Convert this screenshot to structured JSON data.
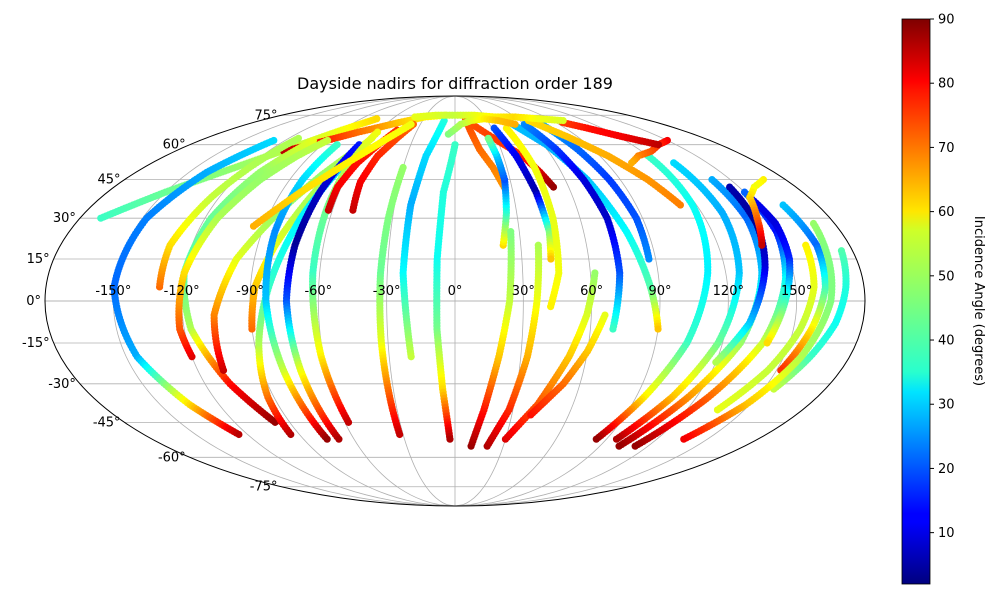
{
  "chart_data": {
    "type": "scatter",
    "projection": "mollweide",
    "title": "Dayside nadirs for diffraction order 189",
    "grid": true,
    "longitude_ticks": [
      "-150°",
      "-120°",
      "-90°",
      "-60°",
      "-30°",
      "0°",
      "30°",
      "60°",
      "90°",
      "120°",
      "150°"
    ],
    "latitude_ticks": [
      "-75°",
      "-60°",
      "-45°",
      "-30°",
      "-15°",
      "0°",
      "15°",
      "30°",
      "45°",
      "60°",
      "75°"
    ],
    "colorbar": {
      "label": "Incidence Angle (degrees)",
      "colormap": "jet",
      "range": [
        2,
        90
      ],
      "ticks": [
        "10",
        "20",
        "30",
        "40",
        "50",
        "60",
        "70",
        "80",
        "90"
      ]
    },
    "tracks": [
      {
        "lon": [
          -170,
          -150,
          -125,
          -105,
          -90,
          -75
        ],
        "lat": [
          30,
          40,
          51,
          60,
          67,
          73
        ],
        "incidence": [
          40,
          44,
          48,
          52,
          56,
          60
        ]
      },
      {
        "lon": [
          -110,
          -75,
          -50,
          -30,
          -10
        ],
        "lat": [
          57,
          66,
          71,
          74,
          75
        ],
        "incidence": [
          85,
          70,
          62,
          58,
          55
        ]
      },
      {
        "lon": [
          -128,
          -140,
          -148,
          -150,
          -145,
          -135,
          -125
        ],
        "lat": [
          62,
          48,
          30,
          5,
          -20,
          -38,
          -50
        ],
        "incidence": [
          32,
          28,
          24,
          22,
          28,
          60,
          85
        ]
      },
      {
        "lon": [
          -130,
          -130,
          -124,
          -118,
          -113
        ],
        "lat": [
          5,
          20,
          38,
          52,
          63
        ],
        "incidence": [
          70,
          60,
          52,
          50,
          50
        ]
      },
      {
        "lon": [
          -100,
          -110,
          -117,
          -120,
          -117,
          -108,
          -98
        ],
        "lat": [
          62,
          48,
          30,
          10,
          -10,
          -30,
          -45
        ],
        "incidence": [
          55,
          48,
          44,
          42,
          50,
          78,
          88
        ]
      },
      {
        "lon": [
          -120,
          -122,
          -120,
          -114,
          -106,
          -98,
          -90
        ],
        "lat": [
          -20,
          -10,
          10,
          30,
          45,
          55,
          62
        ],
        "incidence": [
          82,
          72,
          60,
          50,
          48,
          50,
          52
        ]
      },
      {
        "lon": [
          -108,
          -106,
          -98,
          -86,
          -74,
          -62
        ],
        "lat": [
          -25,
          -5,
          15,
          32,
          47,
          60
        ],
        "incidence": [
          84,
          68,
          55,
          48,
          48,
          52
        ]
      },
      {
        "lon": [
          -90,
          -88,
          -82,
          -75,
          -68,
          -60
        ],
        "lat": [
          -10,
          5,
          20,
          35,
          50,
          63
        ],
        "incidence": [
          70,
          62,
          55,
          50,
          50,
          54
        ]
      },
      {
        "lon": [
          -95,
          -93,
          -88,
          -82,
          -74,
          -64
        ],
        "lat": [
          -50,
          -35,
          -15,
          5,
          30,
          55
        ],
        "incidence": [
          86,
          70,
          50,
          40,
          34,
          32
        ]
      },
      {
        "lon": [
          -80,
          -83,
          -84,
          -83,
          -80,
          -76
        ],
        "lat": [
          60,
          45,
          25,
          0,
          -25,
          -52
        ],
        "incidence": [
          40,
          32,
          25,
          30,
          52,
          88
        ]
      },
      {
        "lon": [
          -65,
          -70,
          -73,
          -74,
          -72,
          -69
        ],
        "lat": [
          60,
          40,
          20,
          0,
          -25,
          -52
        ],
        "incidence": [
          15,
          8,
          4,
          20,
          55,
          86
        ]
      },
      {
        "lon": [
          -60,
          -62,
          -63,
          -63,
          -61,
          -58
        ],
        "lat": [
          66,
          52,
          35,
          10,
          -20,
          -45
        ],
        "incidence": [
          56,
          52,
          45,
          40,
          58,
          84
        ]
      },
      {
        "lon": [
          -62,
          -62,
          -58,
          -52,
          -46
        ],
        "lat": [
          33,
          42,
          52,
          60,
          67
        ],
        "incidence": [
          84,
          80,
          78,
          76,
          75
        ]
      },
      {
        "lon": [
          -50,
          -51,
          -48,
          -42,
          -36
        ],
        "lat": [
          33,
          44,
          55,
          63,
          70
        ],
        "incidence": [
          84,
          80,
          76,
          73,
          70
        ]
      },
      {
        "lon": [
          -95,
          -80,
          -64,
          -50,
          -38
        ],
        "lat": [
          27,
          40,
          52,
          62,
          70
        ],
        "incidence": [
          64,
          60,
          58,
          57,
          56
        ]
      },
      {
        "lon": [
          -30,
          -32,
          -33,
          -33,
          -32
        ],
        "lat": [
          50,
          30,
          10,
          -15,
          -50
        ],
        "incidence": [
          48,
          46,
          44,
          55,
          84
        ]
      },
      {
        "lon": [
          -10,
          -18,
          -22,
          -23,
          -20
        ],
        "lat": [
          72,
          55,
          35,
          10,
          -20
        ],
        "incidence": [
          38,
          32,
          28,
          35,
          52
        ]
      },
      {
        "lon": [
          0,
          -6,
          -8,
          -8,
          -6,
          -3
        ],
        "lat": [
          60,
          40,
          15,
          -10,
          -32,
          -52
        ],
        "incidence": [
          40,
          38,
          36,
          45,
          60,
          86
        ]
      },
      {
        "lon": [
          10,
          12,
          16,
          22,
          26
        ],
        "lat": [
          73,
          67,
          58,
          50,
          42
        ],
        "incidence": [
          72,
          72,
          70,
          68,
          66
        ]
      },
      {
        "lon": [
          15,
          30,
          42,
          48,
          52
        ],
        "lat": [
          70,
          62,
          55,
          48,
          42
        ],
        "incidence": [
          72,
          74,
          76,
          82,
          88
        ]
      },
      {
        "lon": [
          22,
          25,
          27,
          26,
          24
        ],
        "lat": [
          20,
          32,
          45,
          55,
          63
        ],
        "incidence": [
          60,
          40,
          20,
          30,
          45
        ]
      },
      {
        "lon": [
          32,
          38,
          42,
          44,
          43
        ],
        "lat": [
          68,
          55,
          40,
          25,
          15
        ],
        "incidence": [
          20,
          12,
          6,
          45,
          62
        ]
      },
      {
        "lon": [
          42,
          46,
          47,
          46,
          42
        ],
        "lat": [
          68,
          50,
          30,
          10,
          -2
        ],
        "incidence": [
          58,
          56,
          55,
          56,
          58
        ]
      },
      {
        "lon": [
          10,
          15,
          20,
          24,
          26
        ],
        "lat": [
          -55,
          -40,
          -20,
          0,
          25
        ],
        "incidence": [
          88,
          78,
          62,
          52,
          46
        ]
      },
      {
        "lon": [
          20,
          28,
          33,
          36,
          38
        ],
        "lat": [
          -55,
          -40,
          -20,
          0,
          20
        ],
        "incidence": [
          86,
          76,
          64,
          56,
          50
        ]
      },
      {
        "lon": [
          30,
          42,
          52,
          58,
          62
        ],
        "lat": [
          -52,
          -38,
          -20,
          -5,
          10
        ],
        "incidence": [
          82,
          72,
          62,
          54,
          48
        ]
      },
      {
        "lon": [
          40,
          52,
          60,
          66
        ],
        "lat": [
          -42,
          -30,
          -18,
          -5
        ],
        "incidence": [
          78,
          70,
          62,
          55
        ]
      },
      {
        "lon": [
          50,
          62,
          72,
          80,
          86,
          90
        ],
        "lat": [
          70,
          60,
          45,
          25,
          5,
          -10
        ],
        "incidence": [
          30,
          28,
          30,
          35,
          42,
          62
        ]
      },
      {
        "lon": [
          60,
          66,
          70,
          73,
          73,
          70
        ],
        "lat": [
          70,
          58,
          45,
          30,
          10,
          -10
        ],
        "incidence": [
          25,
          18,
          10,
          8,
          20,
          40
        ]
      },
      {
        "lon": [
          75,
          80,
          84,
          87,
          87
        ],
        "lat": [
          70,
          58,
          45,
          30,
          15
        ],
        "incidence": [
          28,
          22,
          18,
          20,
          25
        ]
      },
      {
        "lon": [
          68,
          82,
          95,
          105,
          112
        ],
        "lat": [
          72,
          64,
          55,
          45,
          35
        ],
        "incidence": [
          60,
          62,
          64,
          66,
          68
        ]
      },
      {
        "lon": [
          120,
          118,
          112,
          104,
          94,
          84
        ],
        "lat": [
          55,
          35,
          10,
          -15,
          -35,
          -52
        ],
        "incidence": [
          40,
          36,
          34,
          40,
          58,
          88
        ]
      },
      {
        "lon": [
          130,
          130,
          126,
          118,
          108,
          96
        ],
        "lat": [
          52,
          32,
          10,
          -15,
          -35,
          -52
        ],
        "incidence": [
          32,
          28,
          30,
          44,
          62,
          86
        ]
      },
      {
        "lon": [
          140,
          140,
          136,
          128,
          116,
          102
        ],
        "lat": [
          45,
          30,
          10,
          -15,
          -35,
          -55
        ],
        "incidence": [
          28,
          22,
          30,
          48,
          66,
          88
        ]
      },
      {
        "lon": [
          150,
          150,
          146,
          138,
          126,
          112
        ],
        "lat": [
          40,
          25,
          8,
          -15,
          -35,
          -55
        ],
        "incidence": [
          22,
          14,
          35,
          52,
          70,
          88
        ]
      },
      {
        "lon": [
          145,
          143,
          138,
          130,
          120
        ],
        "lat": [
          42,
          28,
          12,
          -8,
          -22
        ],
        "incidence": [
          6,
          4,
          10,
          30,
          50
        ]
      },
      {
        "lon": [
          150,
          152,
          150,
          145,
          140
        ],
        "lat": [
          38,
          28,
          15,
          0,
          -15
        ],
        "incidence": [
          12,
          10,
          16,
          40,
          60
        ]
      },
      {
        "lon": [
          163,
          165,
          163,
          158,
          152
        ],
        "lat": [
          35,
          20,
          5,
          -10,
          -25
        ],
        "incidence": [
          30,
          22,
          40,
          58,
          75
        ]
      },
      {
        "lon": [
          175,
          172,
          168,
          162,
          155
        ],
        "lat": [
          18,
          5,
          -8,
          -20,
          -32
        ],
        "incidence": [
          42,
          38,
          36,
          40,
          52
        ]
      },
      {
        "lon": [
          170,
          168,
          165,
          158,
          148,
          136
        ],
        "lat": [
          28,
          18,
          0,
          -20,
          -38,
          -52
        ],
        "incidence": [
          48,
          46,
          46,
          50,
          62,
          80
        ]
      },
      {
        "lon": [
          160,
          158,
          153,
          146,
          136
        ],
        "lat": [
          20,
          5,
          -10,
          -25,
          -40
        ],
        "incidence": [
          58,
          55,
          52,
          52,
          55
        ]
      },
      {
        "lon": [
          168,
          158,
          150,
          145,
          140
        ],
        "lat": [
          45,
          42,
          38,
          30,
          20
        ],
        "incidence": [
          58,
          56,
          60,
          70,
          84
        ]
      },
      {
        "lon": [
          150,
          138,
          126,
          114,
          105
        ],
        "lat": [
          62,
          60,
          57,
          55,
          52
        ],
        "incidence": [
          80,
          76,
          72,
          68,
          64
        ]
      },
      {
        "lon": [
          138,
          122,
          108,
          96
        ],
        "lat": [
          60,
          64,
          68,
          71
        ],
        "incidence": [
          85,
          80,
          78,
          74
        ]
      },
      {
        "lon": [
          -40,
          -20,
          0,
          20,
          40,
          60,
          80,
          100
        ],
        "lat": [
          74,
          75,
          75,
          75,
          74,
          74,
          73,
          72
        ],
        "incidence": [
          55,
          54,
          52,
          55,
          58,
          60,
          56,
          54
        ]
      },
      {
        "lon": [
          -5,
          5,
          15,
          28,
          40,
          52
        ],
        "lat": [
          65,
          70,
          72,
          73,
          72,
          70
        ],
        "incidence": [
          46,
          50,
          54,
          58,
          62,
          64
        ]
      }
    ]
  }
}
